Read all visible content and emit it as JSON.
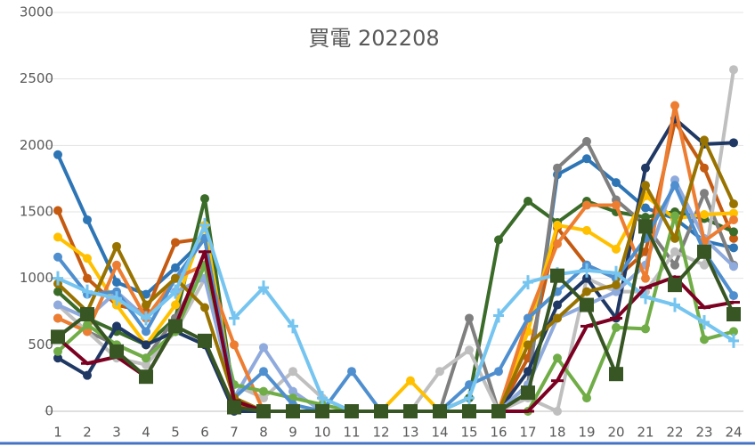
{
  "chart_data": {
    "type": "line",
    "title": "買電 202208",
    "categories": [
      1,
      2,
      3,
      4,
      5,
      6,
      7,
      8,
      9,
      10,
      11,
      12,
      13,
      14,
      15,
      16,
      17,
      18,
      19,
      20,
      21,
      22,
      23,
      24
    ],
    "ylim": [
      0,
      3000
    ],
    "yticks": [
      0,
      500,
      1000,
      1500,
      2000,
      2500,
      3000
    ],
    "grid": true,
    "series": [
      {
        "color": "#2e75b6",
        "marker": "circle",
        "values": [
          1930,
          1440,
          970,
          880,
          1080,
          1300,
          100,
          0,
          0,
          0,
          0,
          0,
          0,
          0,
          0,
          0,
          200,
          1780,
          1900,
          1720,
          1530,
          1450,
          1280,
          1230
        ]
      },
      {
        "color": "#c55a11",
        "marker": "circle",
        "values": [
          1510,
          1000,
          800,
          750,
          1270,
          1300,
          50,
          0,
          0,
          0,
          0,
          0,
          0,
          0,
          0,
          0,
          400,
          1380,
          1100,
          1000,
          1200,
          2180,
          1830,
          1300
        ]
      },
      {
        "color": "#3a6b28",
        "marker": "circle",
        "values": [
          900,
          700,
          600,
          500,
          700,
          1600,
          100,
          0,
          0,
          0,
          0,
          0,
          0,
          0,
          100,
          1290,
          1580,
          1420,
          1580,
          1500,
          1460,
          1500,
          1450,
          1350
        ]
      },
      {
        "color": "#7f7f7f",
        "marker": "circle",
        "values": [
          700,
          600,
          500,
          400,
          700,
          1100,
          100,
          0,
          0,
          0,
          0,
          0,
          0,
          0,
          700,
          0,
          200,
          1830,
          2030,
          1590,
          1400,
          1100,
          1640,
          1100
        ]
      },
      {
        "color": "#bfbfbf",
        "marker": "circle",
        "values": [
          800,
          600,
          400,
          350,
          600,
          1000,
          200,
          100,
          300,
          100,
          0,
          0,
          0,
          300,
          460,
          0,
          100,
          0,
          1000,
          900,
          900,
          1200,
          1100,
          2570
        ]
      },
      {
        "color": "#ffc000",
        "marker": "circle",
        "values": [
          1310,
          1150,
          800,
          500,
          800,
          1400,
          100,
          0,
          0,
          0,
          0,
          0,
          230,
          0,
          0,
          0,
          600,
          1400,
          1360,
          1220,
          1620,
          1450,
          1480,
          1490
        ]
      },
      {
        "color": "#1f3864",
        "marker": "circle",
        "values": [
          400,
          270,
          640,
          500,
          600,
          500,
          0,
          0,
          0,
          0,
          0,
          0,
          0,
          0,
          0,
          0,
          300,
          800,
          1000,
          700,
          1830,
          2200,
          2010,
          2020
        ]
      },
      {
        "color": "#8faadc",
        "marker": "circle",
        "values": [
          800,
          700,
          900,
          700,
          900,
          1000,
          100,
          480,
          150,
          0,
          0,
          0,
          0,
          0,
          0,
          0,
          200,
          700,
          800,
          900,
          1100,
          1740,
          1300,
          1090
        ]
      },
      {
        "color": "#ed7d31",
        "marker": "circle",
        "values": [
          700,
          600,
          1100,
          700,
          1000,
          1100,
          500,
          0,
          0,
          0,
          0,
          0,
          0,
          0,
          0,
          0,
          700,
          1260,
          1550,
          1550,
          1000,
          2300,
          1280,
          1440
        ]
      },
      {
        "color": "#70ad47",
        "marker": "circle",
        "values": [
          450,
          650,
          500,
          400,
          600,
          1100,
          200,
          150,
          100,
          50,
          0,
          0,
          0,
          0,
          0,
          0,
          0,
          400,
          100,
          630,
          620,
          1470,
          540,
          600
        ]
      },
      {
        "color": "#4f8fcf",
        "marker": "circle",
        "values": [
          1160,
          880,
          900,
          600,
          1000,
          1300,
          100,
          300,
          50,
          0,
          300,
          0,
          0,
          0,
          200,
          300,
          700,
          900,
          1100,
          1000,
          1300,
          1700,
          1200,
          870
        ]
      },
      {
        "color": "#997300",
        "marker": "circle",
        "values": [
          960,
          750,
          1240,
          800,
          1000,
          780,
          100,
          0,
          0,
          0,
          0,
          0,
          0,
          0,
          0,
          0,
          500,
          700,
          900,
          950,
          1700,
          1300,
          2040,
          1560
        ]
      },
      {
        "color": "#75c5f0",
        "marker": "plus",
        "values": [
          1000,
          900,
          850,
          700,
          900,
          1400,
          700,
          930,
          640,
          100,
          0,
          0,
          0,
          0,
          100,
          720,
          970,
          1030,
          1060,
          1040,
          860,
          800,
          670,
          530
        ]
      },
      {
        "color": "#7b0021",
        "marker": "dash",
        "values": [
          550,
          360,
          410,
          260,
          640,
          1200,
          80,
          0,
          0,
          0,
          0,
          0,
          0,
          0,
          0,
          0,
          0,
          230,
          640,
          700,
          930,
          1010,
          780,
          820
        ]
      },
      {
        "color": "#375623",
        "marker": "square",
        "values": [
          560,
          730,
          450,
          260,
          640,
          530,
          30,
          0,
          0,
          0,
          0,
          0,
          0,
          0,
          0,
          0,
          140,
          1020,
          800,
          280,
          1390,
          950,
          1200,
          730
        ]
      }
    ]
  }
}
